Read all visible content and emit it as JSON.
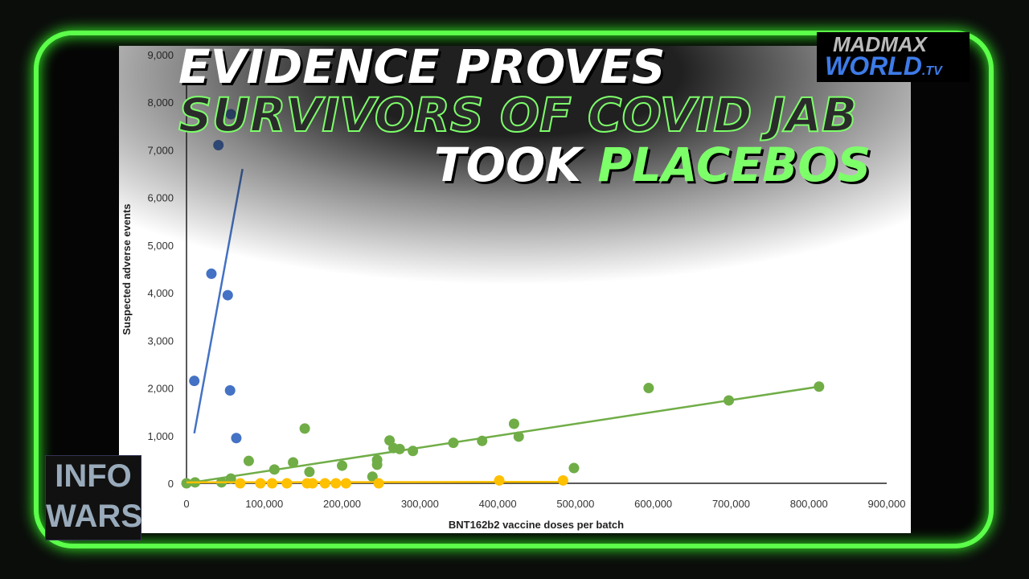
{
  "headline": {
    "line1": "EVIDENCE PROVES",
    "line2": "SURVIVORS OF COVID JAB",
    "line3a": "TOOK ",
    "line3b": "PLACEBOS"
  },
  "logos": {
    "madmax": "MADMAX",
    "world": "WORLD",
    "tv": ".TV",
    "infowars_top": "INFO",
    "infowars_bottom": "WARS"
  },
  "colors": {
    "frame": "#5cff4a",
    "blue": "#4472c4",
    "green": "#70ad47",
    "yellow": "#ffc000"
  },
  "chart_data": {
    "type": "scatter",
    "xlabel": "BNT162b2 vaccine doses per batch",
    "ylabel": "Suspected adverse events",
    "xlim": [
      0,
      900000
    ],
    "ylim": [
      0,
      9000
    ],
    "xticks": [
      "0",
      "100,000",
      "200,000",
      "300,000",
      "400,000",
      "500,000",
      "600,000",
      "700,000",
      "800,000",
      "900,000"
    ],
    "yticks": [
      "0",
      "1,000",
      "2,000",
      "3,000",
      "4,000",
      "5,000",
      "6,000",
      "7,000",
      "8,000",
      "9,000"
    ],
    "grid": false,
    "series": [
      {
        "color": "#4472c4",
        "points": [
          [
            41000,
            7100
          ],
          [
            57000,
            7750
          ],
          [
            32000,
            4400
          ],
          [
            53000,
            3950
          ],
          [
            10000,
            2150
          ],
          [
            56000,
            1950
          ],
          [
            64000,
            950
          ]
        ],
        "trend": [
          [
            10000,
            1050
          ],
          [
            72000,
            6600
          ]
        ]
      },
      {
        "color": "#70ad47",
        "points": [
          [
            0,
            0
          ],
          [
            11000,
            20
          ],
          [
            45000,
            20
          ],
          [
            57000,
            100
          ],
          [
            80000,
            470
          ],
          [
            113000,
            290
          ],
          [
            137000,
            440
          ],
          [
            152000,
            1150
          ],
          [
            158000,
            240
          ],
          [
            200000,
            370
          ],
          [
            239000,
            140
          ],
          [
            245000,
            490
          ],
          [
            245000,
            390
          ],
          [
            261000,
            900
          ],
          [
            266000,
            740
          ],
          [
            274000,
            720
          ],
          [
            291000,
            680
          ],
          [
            343000,
            850
          ],
          [
            380000,
            890
          ],
          [
            421000,
            1250
          ],
          [
            427000,
            980
          ],
          [
            498000,
            320
          ],
          [
            594000,
            2000
          ],
          [
            697000,
            1740
          ],
          [
            813000,
            2030
          ]
        ],
        "trend": [
          [
            0,
            0
          ],
          [
            813000,
            2030
          ]
        ]
      },
      {
        "color": "#ffc000",
        "points": [
          [
            69000,
            0
          ],
          [
            95000,
            0
          ],
          [
            110000,
            0
          ],
          [
            129000,
            0
          ],
          [
            155000,
            0
          ],
          [
            162000,
            0
          ],
          [
            178000,
            0
          ],
          [
            192000,
            0
          ],
          [
            205000,
            0
          ],
          [
            247000,
            0
          ],
          [
            402000,
            60
          ],
          [
            484000,
            60
          ]
        ],
        "trend": [
          [
            0,
            20
          ],
          [
            490000,
            30
          ]
        ]
      }
    ]
  }
}
